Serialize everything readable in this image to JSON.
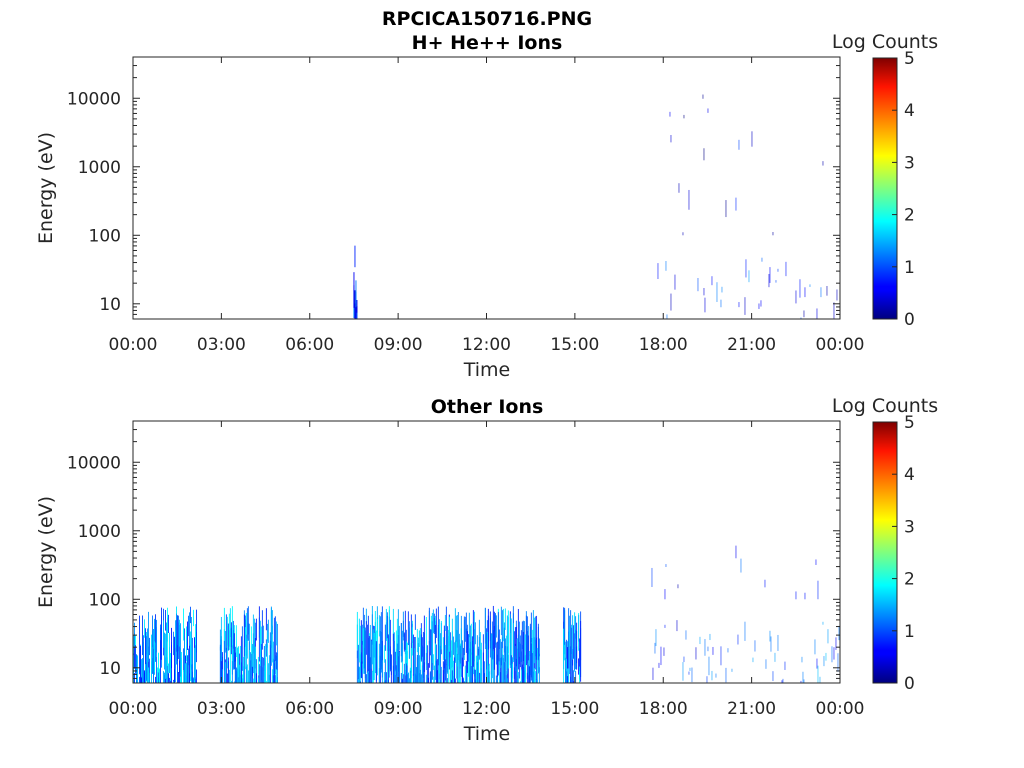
{
  "figure_title": "RPCICA150716.PNG",
  "chart_data": [
    {
      "type": "heatmap",
      "title": "H+ He++ Ions",
      "xlabel": "Time",
      "ylabel": "Energy (eV)",
      "x_ticks": [
        "00:00",
        "03:00",
        "06:00",
        "09:00",
        "12:00",
        "15:00",
        "18:00",
        "21:00",
        "00:00"
      ],
      "xlim_hours": [
        0,
        24
      ],
      "y_scale": "log",
      "ylim": [
        6,
        40000
      ],
      "y_ticks": [
        {
          "value": 10,
          "label": "10"
        },
        {
          "value": 100,
          "label": "100"
        },
        {
          "value": 1000,
          "label": "1000"
        },
        {
          "value": 10000,
          "label": "10000"
        }
      ],
      "colorbar": {
        "label": "Log Counts",
        "min": 0,
        "max": 5,
        "ticks": [
          "0",
          "1",
          "2",
          "3",
          "4",
          "5"
        ],
        "colormap": "jet"
      },
      "regions": [
        {
          "t_start": 7.45,
          "t_end": 7.6,
          "e_min": 6,
          "e_max": 80,
          "log_counts": 0.8,
          "density": 0.8
        },
        {
          "t_start": 17.6,
          "t_end": 24.0,
          "e_min": 6,
          "e_max": 50,
          "log_counts": 0.8,
          "density": 0.2
        },
        {
          "t_start": 17.6,
          "t_end": 24.0,
          "e_min": 100,
          "e_max": 15000,
          "log_counts": 0.5,
          "density": 0.07
        }
      ]
    },
    {
      "type": "heatmap",
      "title": "Other Ions",
      "xlabel": "Time",
      "ylabel": "Energy (eV)",
      "x_ticks": [
        "00:00",
        "03:00",
        "06:00",
        "09:00",
        "12:00",
        "15:00",
        "18:00",
        "21:00",
        "00:00"
      ],
      "xlim_hours": [
        0,
        24
      ],
      "y_scale": "log",
      "ylim": [
        6,
        40000
      ],
      "y_ticks": [
        {
          "value": 10,
          "label": "10"
        },
        {
          "value": 100,
          "label": "100"
        },
        {
          "value": 1000,
          "label": "1000"
        },
        {
          "value": 10000,
          "label": "10000"
        }
      ],
      "colorbar": {
        "label": "Log Counts",
        "min": 0,
        "max": 5,
        "ticks": [
          "0",
          "1",
          "2",
          "3",
          "4",
          "5"
        ],
        "colormap": "jet"
      },
      "regions": [
        {
          "t_start": 0.0,
          "t_end": 2.15,
          "e_min": 6,
          "e_max": 80,
          "log_counts": 1.3,
          "density": 0.95
        },
        {
          "t_start": 2.95,
          "t_end": 4.9,
          "e_min": 6,
          "e_max": 80,
          "log_counts": 1.3,
          "density": 0.9
        },
        {
          "t_start": 7.6,
          "t_end": 13.8,
          "e_min": 6,
          "e_max": 80,
          "log_counts": 1.3,
          "density": 0.95
        },
        {
          "t_start": 14.6,
          "t_end": 15.2,
          "e_min": 6,
          "e_max": 80,
          "log_counts": 1.2,
          "density": 0.9
        },
        {
          "t_start": 17.6,
          "t_end": 24.0,
          "e_min": 6,
          "e_max": 50,
          "log_counts": 1.0,
          "density": 0.35
        },
        {
          "t_start": 17.6,
          "t_end": 24.0,
          "e_min": 100,
          "e_max": 700,
          "log_counts": 0.6,
          "density": 0.06
        }
      ]
    }
  ]
}
